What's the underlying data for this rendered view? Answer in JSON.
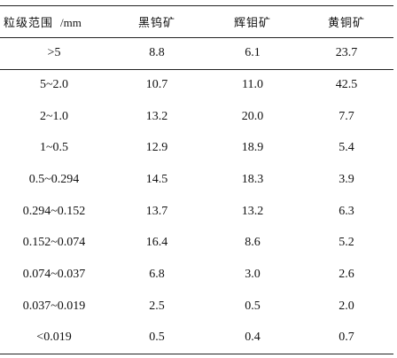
{
  "table": {
    "header": {
      "size_label": "粒级范围",
      "size_unit": "/mm",
      "col2": "黑钨矿",
      "col3": "辉钼矿",
      "col4": "黄铜矿"
    },
    "rows": [
      [
        "&gt;5",
        "8.8",
        "6.1",
        "23.7"
      ],
      [
        "5~2.0",
        "10.7",
        "11.0",
        "42.5"
      ],
      [
        "2~1.0",
        "13.2",
        "20.0",
        "7.7"
      ],
      [
        "1~0.5",
        "12.9",
        "18.9",
        "5.4"
      ],
      [
        "0.5~0.294",
        "14.5",
        "18.3",
        "3.9"
      ],
      [
        "0.294~0.152",
        "13.7",
        "13.2",
        "6.3"
      ],
      [
        "0.152~0.074",
        "16.4",
        "8.6",
        "5.2"
      ],
      [
        "0.074~0.037",
        "6.8",
        "3.0",
        "2.6"
      ],
      [
        "0.037~0.019",
        "2.5",
        "0.5",
        "2.0"
      ],
      [
        "<0.019",
        "0.5",
        "0.4",
        "0.7"
      ]
    ]
  }
}
